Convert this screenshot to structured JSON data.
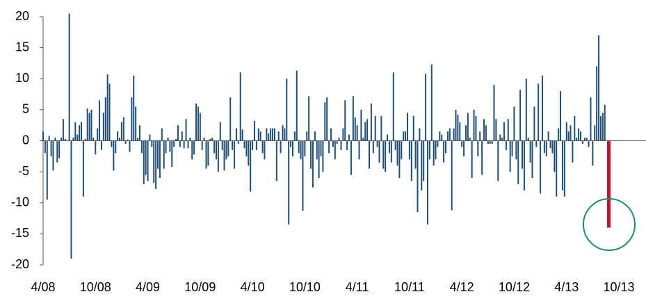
{
  "chart_data": {
    "type": "bar",
    "color": "#1f4e79",
    "highlight_color": "#c8102e",
    "ylim": [
      -20,
      20
    ],
    "yticks": [
      -20,
      -15,
      -10,
      -5,
      0,
      5,
      10,
      15,
      20
    ],
    "categories": [
      "4/08",
      null,
      null,
      null,
      null,
      null,
      null,
      null,
      null,
      null,
      null,
      null,
      null,
      null,
      null,
      null,
      null,
      null,
      null,
      null,
      null,
      null,
      null,
      null,
      null,
      null,
      "10/08",
      null,
      null,
      null,
      null,
      null,
      null,
      null,
      null,
      null,
      null,
      null,
      null,
      null,
      null,
      null,
      null,
      null,
      null,
      null,
      null,
      null,
      null,
      null,
      null,
      null,
      "4/09",
      null,
      null,
      null,
      null,
      null,
      null,
      null,
      null,
      null,
      null,
      null,
      null,
      null,
      null,
      null,
      null,
      null,
      null,
      null,
      null,
      null,
      null,
      null,
      null,
      null,
      "10/09",
      null,
      null,
      null,
      null,
      null,
      null,
      null,
      null,
      null,
      null,
      null,
      null,
      null,
      null,
      null,
      null,
      null,
      null,
      null,
      null,
      null,
      null,
      null,
      null,
      null,
      "4/10",
      null,
      null,
      null,
      null,
      null,
      null,
      null,
      null,
      null,
      null,
      null,
      null,
      null,
      null,
      null,
      null,
      null,
      null,
      null,
      null,
      null,
      null,
      null,
      null,
      null,
      "10/10",
      null,
      null,
      null,
      null,
      null,
      null,
      null,
      null,
      null,
      null,
      null,
      null,
      null,
      null,
      null,
      null,
      null,
      null,
      null,
      null,
      null,
      null,
      null,
      null,
      null,
      "4/11",
      null,
      null,
      null,
      null,
      null,
      null,
      null,
      null,
      null,
      null,
      null,
      null,
      null,
      null,
      null,
      null,
      null,
      null,
      null,
      null,
      null,
      null,
      null,
      null,
      null,
      "10/11",
      null,
      null,
      null,
      null,
      null,
      null,
      null,
      null,
      null,
      null,
      null,
      null,
      null,
      null,
      null,
      null,
      null,
      null,
      null,
      null,
      null,
      null,
      null,
      null,
      null,
      "4/12",
      null,
      null,
      null,
      null,
      null,
      null,
      null,
      null,
      null,
      null,
      null,
      null,
      null,
      null,
      null,
      null,
      null,
      null,
      null,
      null,
      null,
      null,
      null,
      null,
      null,
      "10/12",
      null,
      null,
      null,
      null,
      null,
      null,
      null,
      null,
      null,
      null,
      null,
      null,
      null,
      null,
      null,
      null,
      null,
      null,
      null,
      null,
      null,
      null,
      null,
      null,
      null,
      "4/13",
      null,
      null,
      null,
      null,
      null,
      null,
      null,
      null,
      null,
      null,
      null,
      null,
      null,
      null,
      null,
      null,
      null,
      null,
      null,
      null,
      null,
      null,
      null,
      null,
      null,
      "10/13"
    ],
    "values": [
      1.5,
      -2,
      -9.5,
      0.8,
      -2.5,
      -4.8,
      0.5,
      -3.5,
      -2.8,
      0.5,
      3.5,
      0.3,
      0,
      20.5,
      -19,
      0.5,
      3,
      1,
      2.5,
      3,
      -9,
      0.3,
      5.2,
      4.5,
      5,
      0.5,
      -2.2,
      2,
      6.5,
      -1.5,
      4.5,
      7,
      10.7,
      9.2,
      -1,
      -4.8,
      -2,
      1.5,
      0.5,
      3,
      3.8,
      -0.5,
      0.2,
      -1.8,
      7,
      10.5,
      5.5,
      0.5,
      2.5,
      -2,
      -7,
      -5.5,
      -6.5,
      1,
      -1,
      -6.8,
      -7.8,
      -4.5,
      -6,
      2,
      -4.5,
      -2,
      0.5,
      -1.8,
      -4.2,
      -1,
      0.3,
      2.5,
      -1,
      1.5,
      -1.2,
      3.5,
      -1.2,
      0.5,
      -3,
      -2.2,
      6,
      5.5,
      4.5,
      -1.5,
      0.5,
      -4.5,
      -4,
      0.3,
      0.5,
      -2,
      -3,
      -5,
      3,
      -1.5,
      -4.8,
      -3,
      -2.5,
      7,
      -1.5,
      -4.5,
      2,
      -0.5,
      11,
      1.8,
      -1.2,
      -2.5,
      -4,
      -8.2,
      -1.5,
      3.2,
      -1.5,
      2,
      1.5,
      -2,
      -3,
      2,
      1.2,
      2,
      2,
      2,
      -6.5,
      1.5,
      -2,
      2.5,
      2,
      10,
      -13.5,
      -1,
      -2.5,
      1.5,
      11.3,
      -2,
      -3,
      -11.3,
      -2.5,
      1.5,
      7.2,
      -4.5,
      -7.5,
      1.5,
      -3,
      -6,
      -2.5,
      -5,
      6.2,
      7,
      -2,
      2,
      -1,
      -3,
      -0.5,
      0.5,
      -1.5,
      2,
      6.5,
      -1.5,
      1,
      -5.5,
      7.2,
      3.8,
      2.5,
      -3,
      5,
      0.5,
      3,
      3.5,
      -4.5,
      6,
      -2,
      4,
      -1,
      -3.5,
      4,
      -4.5,
      -5,
      1,
      -2,
      -3.5,
      11,
      -1.5,
      -4,
      -6,
      -3,
      1.5,
      1.5,
      4.5,
      -3,
      -6.5,
      4,
      -4.5,
      -11.5,
      2,
      -8,
      -6.5,
      10.8,
      -13.5,
      -3,
      12.3,
      -4,
      -3,
      -1,
      1.5,
      1,
      -3.5,
      -2,
      1.5,
      2,
      -11.2,
      2,
      5,
      4.2,
      3,
      -1,
      -2.5,
      2.5,
      4.5,
      0.5,
      -6,
      5,
      4,
      -2.5,
      1.5,
      -5.5,
      3.5,
      2.5,
      -0.5,
      -0.5,
      -0.5,
      9,
      3.5,
      -6.5,
      1,
      0.5,
      3,
      -1.5,
      3.5,
      -5,
      -2.5,
      5.5,
      -3,
      -7,
      8.2,
      -4.5,
      -8,
      10,
      0.5,
      -3.5,
      -6,
      5.5,
      -1,
      9.2,
      -8.5,
      10.5,
      -2,
      -2.5,
      1.5,
      -1.2,
      -2,
      -5,
      -9,
      2,
      8,
      -8,
      -9,
      3,
      1.5,
      2.5,
      -3.5,
      4,
      0.5,
      2,
      1.5,
      -0.5,
      0.5,
      0.5,
      -1,
      7,
      -4,
      2.5,
      12,
      17,
      4,
      4.5,
      5.8,
      0,
      -14,
      null,
      null,
      null,
      null,
      null
    ]
  }
}
